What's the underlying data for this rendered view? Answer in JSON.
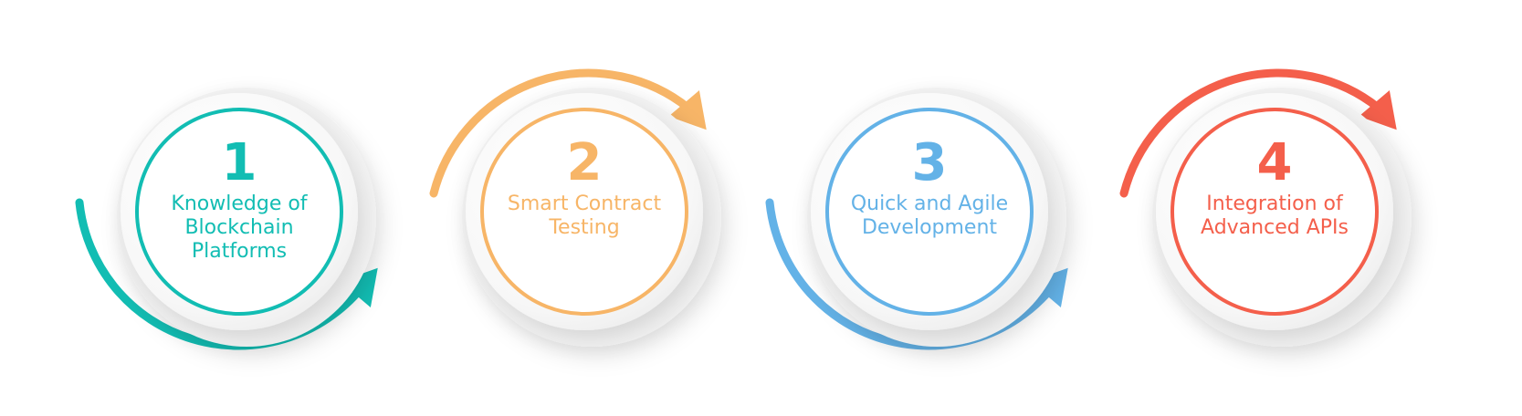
{
  "steps": [
    {
      "number": "1",
      "label_lines": [
        "Knowledge of",
        "Blockchain",
        "Platforms"
      ],
      "color": "#12BDB3"
    },
    {
      "number": "2",
      "label_lines": [
        "Smart Contract",
        "Testing"
      ],
      "color": "#F7B567"
    },
    {
      "number": "3",
      "label_lines": [
        "Quick and Agile",
        "Development"
      ],
      "color": "#63B2E7"
    },
    {
      "number": "4",
      "label_lines": [
        "Integration of",
        "Advanced APIs"
      ],
      "color": "#F45F4B"
    }
  ],
  "arrows": [
    {
      "direction": "bottom-arc",
      "color": "#12BDB3"
    },
    {
      "direction": "top-arc",
      "color": "#F7B567"
    },
    {
      "direction": "bottom-arc",
      "color": "#63B2E7"
    },
    {
      "direction": "top-arc",
      "color": "#F45F4B"
    }
  ]
}
